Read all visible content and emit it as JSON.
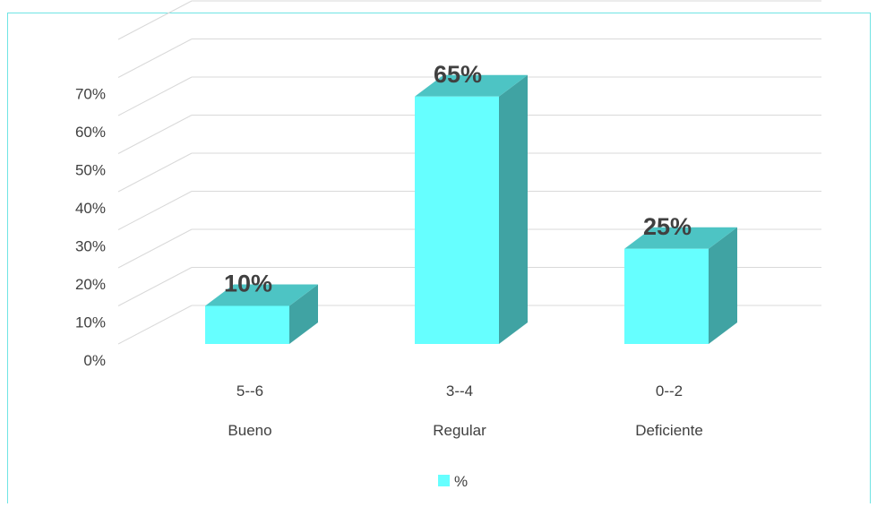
{
  "chart_data": {
    "type": "bar",
    "title": "",
    "xlabel": "",
    "ylabel": "",
    "categories": [
      {
        "range": "5--6",
        "label": "Bueno"
      },
      {
        "range": "3--4",
        "label": "Regular"
      },
      {
        "range": "0--2",
        "label": "Deficiente"
      }
    ],
    "series": [
      {
        "name": "%",
        "values": [
          10,
          65,
          25
        ],
        "data_labels": [
          "10%",
          "65%",
          "25%"
        ]
      }
    ],
    "ylim": [
      0,
      80
    ],
    "yticks": [
      "0%",
      "10%",
      "20%",
      "30%",
      "40%",
      "50%",
      "60%",
      "70%"
    ],
    "grid": true,
    "legend": "bottom-center",
    "colors": {
      "front": "#66ffff",
      "top": "#4dc4c4",
      "side": "#40a3a3",
      "grid": "#d9d9d9",
      "frame": "#6fe4e4",
      "text": "#404040",
      "data_label": "#404040"
    }
  }
}
